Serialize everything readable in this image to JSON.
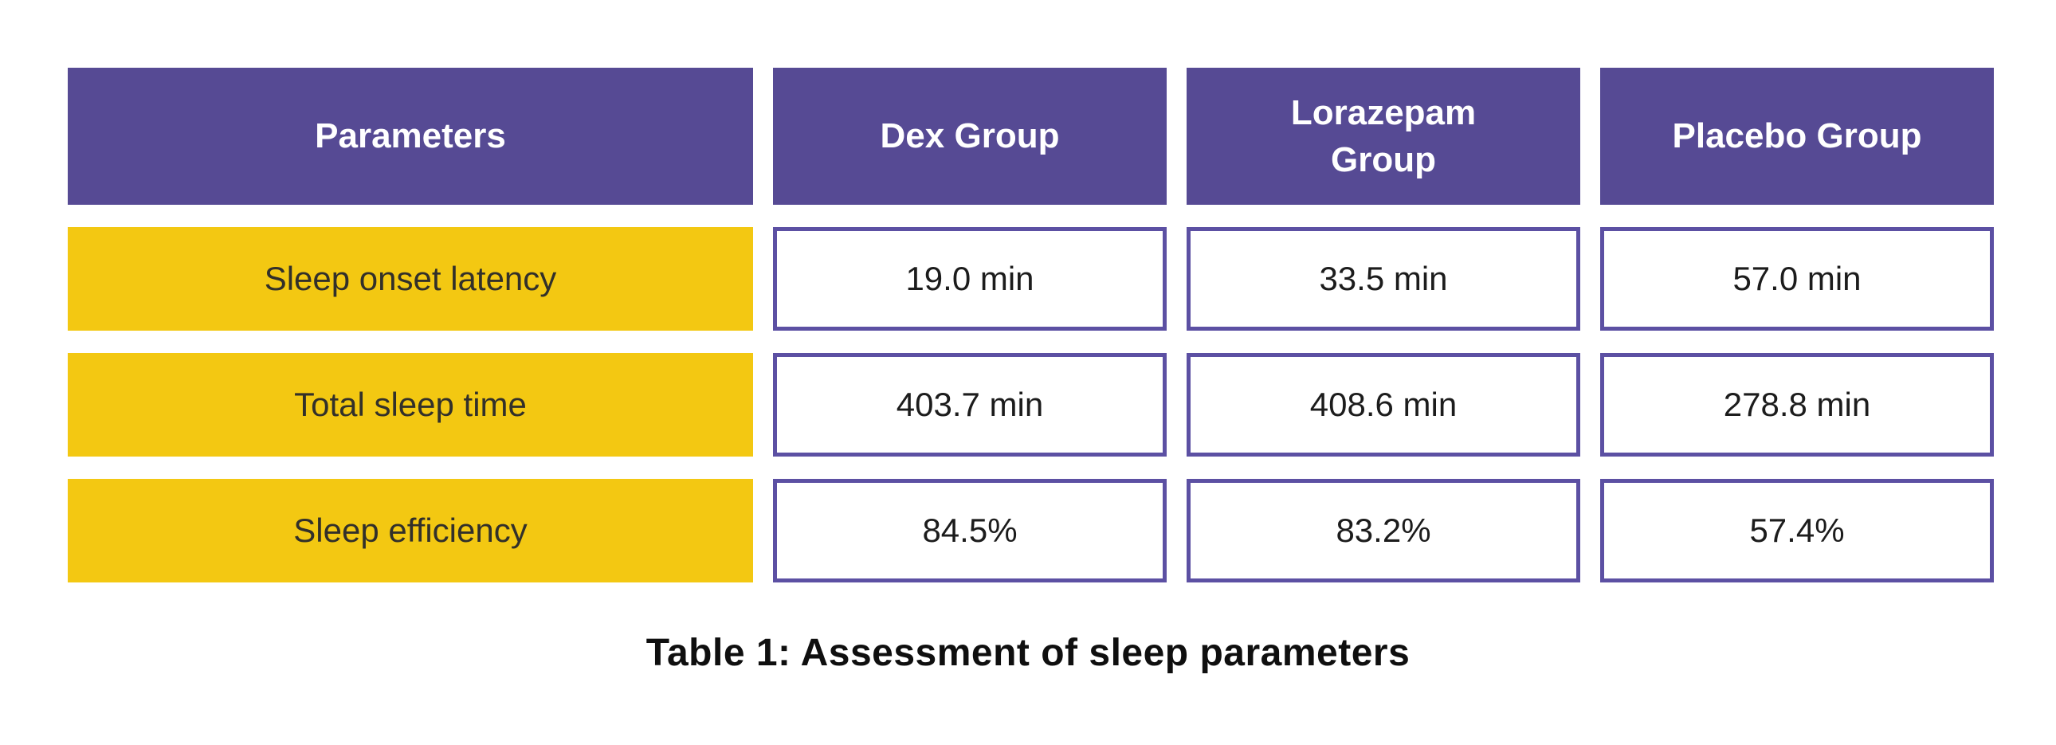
{
  "chart_data": {
    "type": "table",
    "title": "Table 1: Assessment of sleep parameters",
    "columns": [
      "Parameters",
      "Dex Group",
      "Lorazepam Group",
      "Placebo Group"
    ],
    "rows": [
      [
        "Sleep onset latency",
        "19.0 min",
        "33.5 min",
        "57.0 min"
      ],
      [
        "Total sleep time",
        "403.7 min",
        "408.6 min",
        "278.8 min"
      ],
      [
        "Sleep efficiency",
        "84.5%",
        "83.2%",
        "57.4%"
      ]
    ],
    "layout": {
      "header_row_style": "solid purple fill, white semibold text",
      "row_label_style": "solid yellow fill, dark text",
      "value_cell_style": "white fill with purple border",
      "caption_position": "centered below table"
    }
  },
  "colors": {
    "page_bg": "#ffffff",
    "header_bg": "#564a94",
    "header_text": "#ffffff",
    "label_bg": "#f3c812",
    "label_text": "#32302a",
    "value_bg": "#ffffff",
    "value_text": "#1c1c1c",
    "cell_border": "#5c50a3",
    "caption_text": "#0f0f0f"
  }
}
